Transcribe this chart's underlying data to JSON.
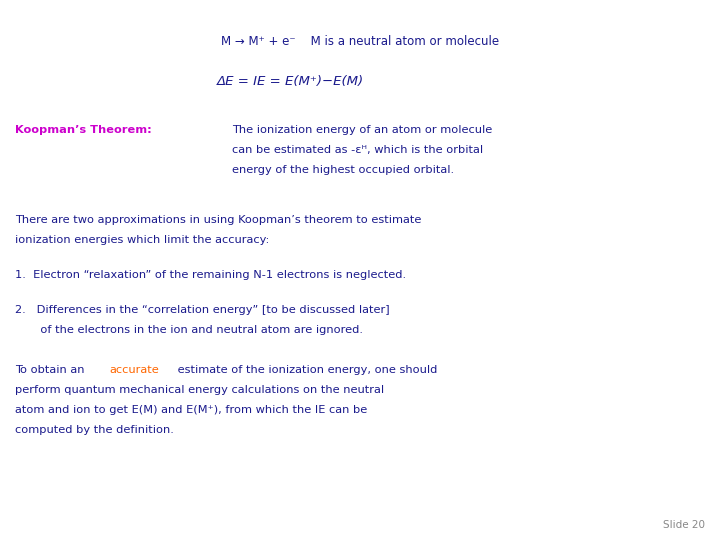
{
  "bg_color": "#ffffff",
  "title_line": "M → M⁺ + e⁻    M is a neutral atom or molecule",
  "formula_img": "ΔE = IE = E(M⁺)−E(M)",
  "koopman_label": "Koopman’s Theorem:",
  "koopman_text_line1": "The ionization energy of an atom or molecule",
  "koopman_text_line2": "can be estimated as -εᴴ, which is the orbital",
  "koopman_text_line3": "energy of the highest occupied orbital.",
  "para1_line1": "There are two approximations in using Koopman’s theorem to estimate",
  "para1_line2": "ionization energies which limit the accuracy:",
  "item1": "1.  Electron “relaxation” of the remaining N-1 electrons is neglected.",
  "item2_line1": "2.   Differences in the “correlation energy” [to be discussed later]",
  "item2_line2": "       of the electrons in the ion and neutral atom are ignored.",
  "para3_part1": "To obtain an ",
  "para3_accurate": "accurate",
  "para3_part2": " estimate of the ionization energy, one should",
  "para3_line2": "perform quantum mechanical energy calculations on the neutral",
  "para3_line3": "atom and ion to get E(M) and E(M⁺), from which the IE can be",
  "para3_line4": "computed by the definition.",
  "slide_num": "Slide 20",
  "dark_blue": "#1a1a8c",
  "magenta": "#cc00cc",
  "orange_red": "#ff6600",
  "gray": "#888888",
  "fs_title": 8.5,
  "fs_formula": 9.5,
  "fs_body": 8.2,
  "fs_slide": 7.5
}
